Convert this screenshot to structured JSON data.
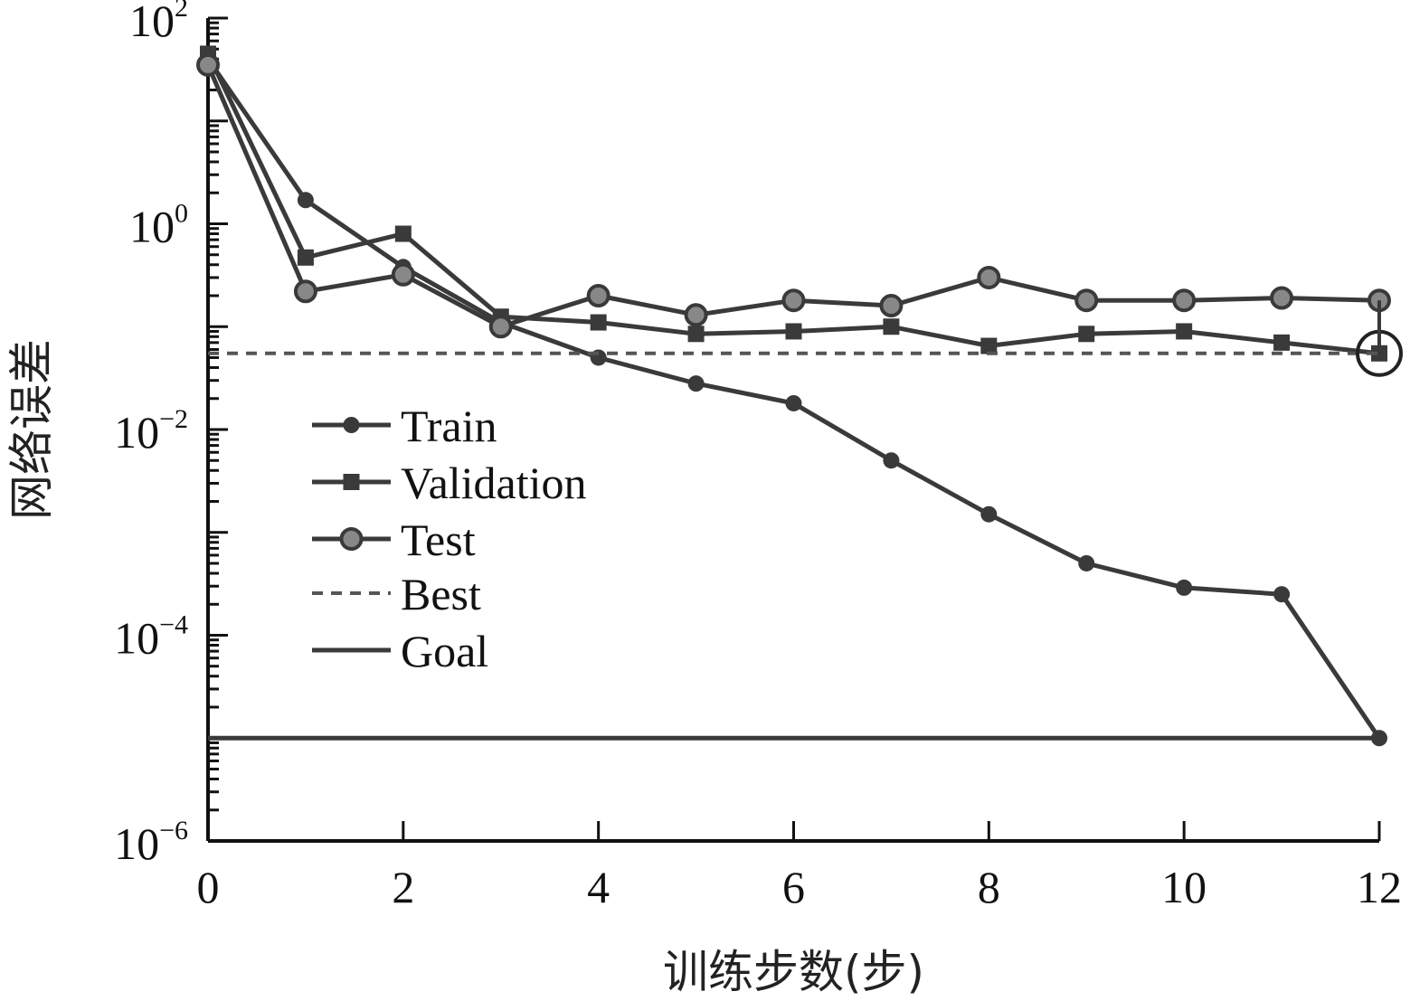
{
  "chart_data": {
    "type": "line",
    "xlabel": "训练步数(步)",
    "ylabel": "网络误差",
    "xlim": [
      0,
      12
    ],
    "ylim": [
      1e-06,
      100
    ],
    "yscale": "log",
    "xticks": [
      0,
      2,
      4,
      6,
      8,
      10,
      12
    ],
    "yticks": [
      {
        "base": "10",
        "exp": "−6",
        "value": 1e-06
      },
      {
        "base": "10",
        "exp": "−4",
        "value": 0.0001
      },
      {
        "base": "10",
        "exp": "−2",
        "value": 0.01
      },
      {
        "base": "10",
        "exp": "0",
        "value": 1
      },
      {
        "base": "10",
        "exp": "2",
        "value": 100
      }
    ],
    "legend_position": "left-middle",
    "best_marker": {
      "x": 12,
      "y": 0.055
    },
    "series": [
      {
        "name": "Train",
        "marker": "dot",
        "style": "solid",
        "x": [
          0,
          1,
          2,
          3,
          4,
          5,
          6,
          7,
          8,
          9,
          10,
          11,
          12
        ],
        "y": [
          40,
          1.7,
          0.38,
          0.11,
          0.05,
          0.028,
          0.018,
          0.005,
          0.0015,
          0.0005,
          0.00029,
          0.00025,
          1e-05
        ]
      },
      {
        "name": "Validation",
        "marker": "square",
        "style": "solid",
        "x": [
          0,
          1,
          2,
          3,
          4,
          5,
          6,
          7,
          8,
          9,
          10,
          11,
          12
        ],
        "y": [
          45,
          0.47,
          0.8,
          0.125,
          0.11,
          0.085,
          0.09,
          0.1,
          0.065,
          0.085,
          0.09,
          0.07,
          0.055
        ]
      },
      {
        "name": "Test",
        "marker": "circle",
        "style": "solid",
        "x": [
          0,
          1,
          2,
          3,
          4,
          5,
          6,
          7,
          8,
          9,
          10,
          11,
          12
        ],
        "y": [
          35,
          0.22,
          0.32,
          0.1,
          0.2,
          0.13,
          0.18,
          0.16,
          0.3,
          0.18,
          0.18,
          0.19,
          0.18
        ]
      },
      {
        "name": "Best",
        "style": "dashed",
        "x": [
          0,
          12
        ],
        "y": [
          0.055,
          0.055
        ]
      },
      {
        "name": "Goal",
        "style": "solid-line",
        "x": [
          0,
          12
        ],
        "y": [
          1e-05,
          1e-05
        ]
      }
    ]
  }
}
